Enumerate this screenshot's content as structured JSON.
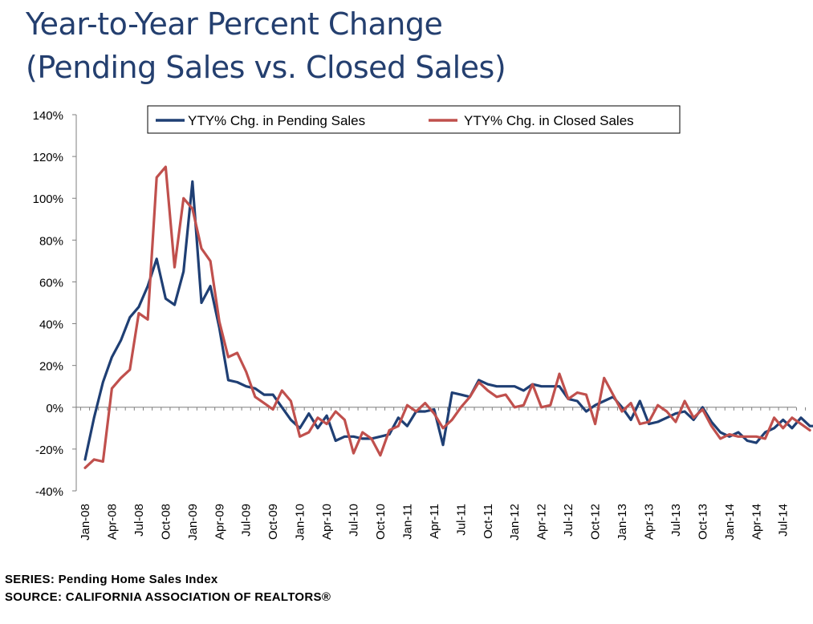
{
  "title_line1": "Year-to-Year Percent Change",
  "title_line2": "(Pending Sales vs. Closed Sales)",
  "footer_series": "SERIES: Pending Home Sales Index",
  "footer_source": "SOURCE:  CALIFORNIA ASSOCIATION OF REALTORS®",
  "chart_data": {
    "type": "line",
    "x_start": "Jan-08",
    "x_ticks": [
      "Jan-08",
      "Apr-08",
      "Jul-08",
      "Oct-08",
      "Jan-09",
      "Apr-09",
      "Jul-09",
      "Oct-09",
      "Jan-10",
      "Apr-10",
      "Jul-10",
      "Oct-10",
      "Jan-11",
      "Apr-11",
      "Jul-11",
      "Oct-11",
      "Jan-12",
      "Apr-12",
      "Jul-12",
      "Oct-12",
      "Jan-13",
      "Apr-13",
      "Jul-13",
      "Oct-13",
      "Jan-14",
      "Apr-14",
      "Jul-14"
    ],
    "y_ticks": [
      "140%",
      "120%",
      "100%",
      "80%",
      "60%",
      "40%",
      "20%",
      "0%",
      "-20%",
      "-40%"
    ],
    "ylim": [
      -40,
      140
    ],
    "legend_position": "top",
    "grid": false,
    "series": [
      {
        "name": "YTY% Chg. in Pending Sales",
        "color": "#1f3f74",
        "values": [
          -25,
          -5,
          12,
          24,
          32,
          43,
          48,
          58,
          71,
          52,
          49,
          65,
          108,
          50,
          58,
          38,
          13,
          12,
          10,
          9,
          6,
          6,
          0,
          -6,
          -10,
          -3,
          -10,
          -4,
          -16,
          -14,
          -14,
          -15,
          -15,
          -14,
          -13,
          -5,
          -9,
          -2,
          -2,
          -1,
          -18,
          7,
          6,
          5,
          13,
          11,
          10,
          10,
          10,
          8,
          11,
          10,
          10,
          10,
          4,
          3,
          -2,
          1,
          3,
          5,
          0,
          -6,
          3,
          -8,
          -7,
          -5,
          -3,
          -2,
          -6,
          0,
          -7,
          -12,
          -14,
          -12,
          -16,
          -17,
          -12,
          -10,
          -6,
          -10,
          -5,
          -9,
          -9
        ]
      },
      {
        "name": "YTY% Chg. in Closed Sales",
        "color": "#c0504d",
        "values": [
          -29,
          -25,
          -26,
          9,
          14,
          18,
          45,
          42,
          110,
          115,
          67,
          100,
          95,
          76,
          70,
          41,
          24,
          26,
          17,
          5,
          2,
          -1,
          8,
          3,
          -14,
          -12,
          -5,
          -8,
          -2,
          -6,
          -22,
          -12,
          -15,
          -23,
          -11,
          -9,
          1,
          -2,
          2,
          -3,
          -10,
          -6,
          0,
          5,
          12,
          8,
          5,
          6,
          0,
          1,
          11,
          0,
          1,
          16,
          4,
          7,
          6,
          -8,
          14,
          6,
          -2,
          2,
          -8,
          -7,
          1,
          -2,
          -7,
          3,
          -5,
          -1,
          -9,
          -15,
          -13,
          -14,
          -14,
          -14,
          -15,
          -5,
          -10,
          -5,
          -8,
          -11
        ]
      }
    ]
  }
}
